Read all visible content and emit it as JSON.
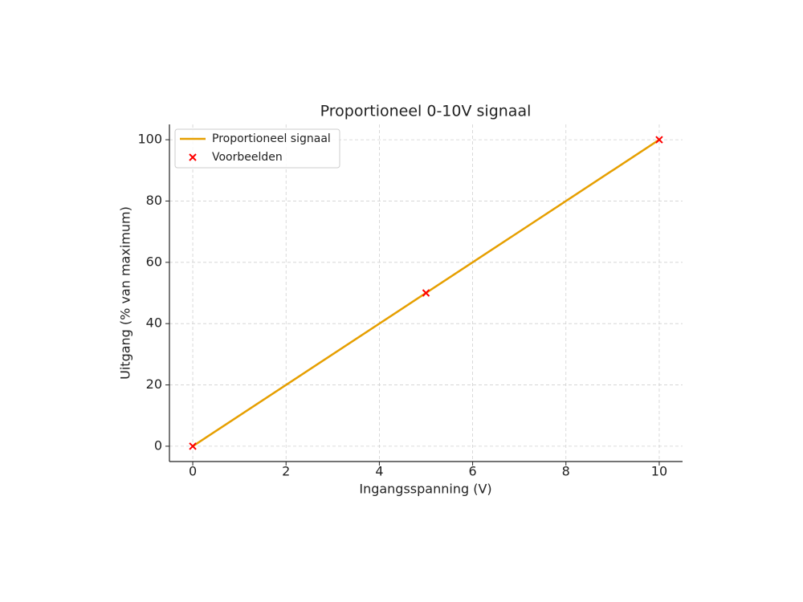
{
  "chart_data": {
    "type": "line",
    "title": "Proportioneel 0-10V signaal",
    "xlabel": "Ingangsspanning (V)",
    "ylabel": "Uitgang (% van maximum)",
    "series": [
      {
        "name": "Proportioneel signaal",
        "type": "line",
        "color": "#e69f00",
        "x": [
          0,
          10
        ],
        "values": [
          0,
          100
        ]
      },
      {
        "name": "Voorbeelden",
        "type": "scatter",
        "marker": "x",
        "color": "#ff0000",
        "x": [
          0,
          5,
          10
        ],
        "values": [
          0,
          50,
          100
        ]
      }
    ],
    "xlim": [
      -0.5,
      10.5
    ],
    "xticks": [
      0,
      2,
      4,
      6,
      8,
      10
    ],
    "ylim": [
      -5,
      105
    ],
    "yticks": [
      0,
      20,
      40,
      60,
      80,
      100
    ],
    "grid": true,
    "legend": "upper left"
  }
}
